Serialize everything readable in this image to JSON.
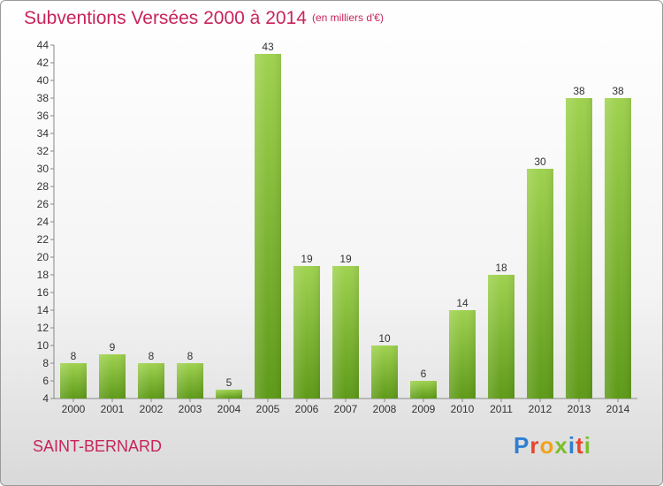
{
  "title": "Subventions Versées 2000 à 2014",
  "subtitle": "(en milliers d'€)",
  "location": "SAINT-BERNARD",
  "logo": {
    "text": "Proxiti",
    "colors": [
      "#2e7fd1",
      "#e8452c",
      "#f2a21b",
      "#7cbf2b",
      "#2e7fd1",
      "#e8452c",
      "#7cbf2b"
    ]
  },
  "chart_data": {
    "type": "bar",
    "categories": [
      "2000",
      "2001",
      "2002",
      "2003",
      "2004",
      "2005",
      "2006",
      "2007",
      "2008",
      "2009",
      "2010",
      "2011",
      "2012",
      "2013",
      "2014"
    ],
    "values": [
      8,
      9,
      8,
      8,
      5,
      43,
      19,
      19,
      10,
      6,
      14,
      18,
      30,
      38,
      38
    ],
    "ylim": [
      4,
      44
    ],
    "yticks": [
      4,
      6,
      8,
      10,
      12,
      14,
      16,
      18,
      20,
      22,
      24,
      26,
      28,
      30,
      32,
      34,
      36,
      38,
      40,
      42,
      44
    ],
    "grid": false,
    "bar_color": "#7ab82f",
    "bar_color_light": "#a3d45a"
  }
}
